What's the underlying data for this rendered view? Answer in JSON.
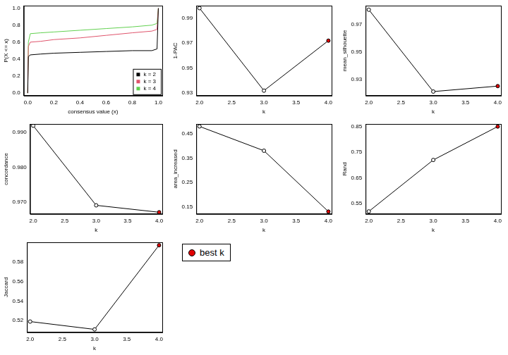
{
  "chart_data": [
    {
      "type": "line",
      "x_label": "consensus value (x)",
      "y_label": "P(X <= x)",
      "legend": "bottomright",
      "grid": false,
      "xlim": [
        -0.03,
        1.03
      ],
      "ylim": [
        -0.03,
        1.03
      ],
      "xticks": [
        {
          "value": 0,
          "label": "0.0"
        },
        0.2,
        0.4,
        0.6,
        0.8,
        {
          "value": 1,
          "label": "1.0"
        }
      ],
      "yticks": [
        {
          "value": 0,
          "label": "0.0"
        },
        0.2,
        0.4,
        0.6,
        0.8,
        {
          "value": 1,
          "label": "1.0"
        }
      ],
      "series": [
        {
          "name": "k = 2",
          "color": "#000000",
          "x": [
            0,
            0.005,
            0.02,
            0.1,
            0.2,
            0.4,
            0.6,
            0.8,
            0.95,
            0.99,
            1.0
          ],
          "values": [
            0,
            0.43,
            0.45,
            0.46,
            0.47,
            0.48,
            0.49,
            0.5,
            0.5,
            0.52,
            1.0
          ]
        },
        {
          "name": "k = 3",
          "color": "#df536b",
          "x": [
            0,
            0.005,
            0.02,
            0.1,
            0.2,
            0.4,
            0.6,
            0.8,
            0.95,
            0.99,
            1.0
          ],
          "values": [
            0,
            0.55,
            0.6,
            0.61,
            0.63,
            0.65,
            0.68,
            0.71,
            0.73,
            0.75,
            1.0
          ]
        },
        {
          "name": "k = 4",
          "color": "#61d04f",
          "x": [
            0,
            0.005,
            0.02,
            0.1,
            0.2,
            0.4,
            0.6,
            0.8,
            0.95,
            0.99,
            1.0
          ],
          "values": [
            0,
            0.6,
            0.7,
            0.71,
            0.72,
            0.74,
            0.76,
            0.78,
            0.8,
            0.82,
            1.0
          ]
        }
      ]
    },
    {
      "type": "line",
      "x_label": "k",
      "y_label": "1-PAC",
      "grid": false,
      "x": [
        2,
        3,
        4
      ],
      "xlim": [
        1.95,
        4.05
      ],
      "ylim": [
        0.928,
        1.0
      ],
      "xticks": [
        {
          "value": 2,
          "label": "2.0"
        },
        2.5,
        {
          "value": 3,
          "label": "3.0"
        },
        3.5,
        {
          "value": 4,
          "label": "4.0"
        }
      ],
      "yticks": [
        0.93,
        0.95,
        0.97,
        0.99
      ],
      "series": [
        {
          "color": "#000000",
          "marker": "circle",
          "colors": [
            "#ffffff",
            "#ffffff",
            "#e00000"
          ],
          "values": [
            0.998,
            0.932,
            0.972
          ]
        }
      ]
    },
    {
      "type": "line",
      "x_label": "k",
      "y_label": "mean_silhouette",
      "grid": false,
      "x": [
        2,
        3,
        4
      ],
      "xlim": [
        1.95,
        4.05
      ],
      "ylim": [
        0.918,
        0.984
      ],
      "xticks": [
        {
          "value": 2,
          "label": "2.0"
        },
        2.5,
        {
          "value": 3,
          "label": "3.0"
        },
        3.5,
        {
          "value": 4,
          "label": "4.0"
        }
      ],
      "yticks": [
        0.93,
        0.95,
        0.97
      ],
      "series": [
        {
          "color": "#000000",
          "marker": "circle",
          "colors": [
            "#ffffff",
            "#ffffff",
            "#e00000"
          ],
          "values": [
            0.981,
            0.921,
            0.925
          ]
        }
      ]
    },
    {
      "type": "line",
      "x_label": "k",
      "y_label": "concordance",
      "grid": false,
      "x": [
        2,
        3,
        4
      ],
      "xlim": [
        1.95,
        4.05
      ],
      "ylim": [
        0.9665,
        0.9925
      ],
      "xticks": [
        {
          "value": 2,
          "label": "2.0"
        },
        2.5,
        {
          "value": 3,
          "label": "3.0"
        },
        3.5,
        {
          "value": 4,
          "label": "4.0"
        }
      ],
      "yticks": [
        {
          "value": 0.97,
          "label": "0.970"
        },
        {
          "value": 0.98,
          "label": "0.980"
        },
        {
          "value": 0.99,
          "label": "0.990"
        }
      ],
      "series": [
        {
          "color": "#000000",
          "marker": "circle",
          "colors": [
            "#ffffff",
            "#ffffff",
            "#e00000"
          ],
          "values": [
            0.992,
            0.969,
            0.967
          ]
        }
      ]
    },
    {
      "type": "line",
      "x_label": "k",
      "y_label": "area_increased",
      "grid": false,
      "x": [
        2,
        3,
        4
      ],
      "xlim": [
        1.95,
        4.05
      ],
      "ylim": [
        0.12,
        0.49
      ],
      "xticks": [
        {
          "value": 2,
          "label": "2.0"
        },
        2.5,
        {
          "value": 3,
          "label": "3.0"
        },
        3.5,
        {
          "value": 4,
          "label": "4.0"
        }
      ],
      "yticks": [
        0.15,
        0.25,
        0.35,
        0.45
      ],
      "series": [
        {
          "color": "#000000",
          "marker": "circle",
          "colors": [
            "#ffffff",
            "#ffffff",
            "#e00000"
          ],
          "values": [
            0.48,
            0.38,
            0.13
          ]
        }
      ]
    },
    {
      "type": "line",
      "x_label": "k",
      "y_label": "Rand",
      "grid": false,
      "x": [
        2,
        3,
        4
      ],
      "xlim": [
        1.95,
        4.05
      ],
      "ylim": [
        0.51,
        0.86
      ],
      "xticks": [
        {
          "value": 2,
          "label": "2.0"
        },
        2.5,
        {
          "value": 3,
          "label": "3.0"
        },
        3.5,
        {
          "value": 4,
          "label": "4.0"
        }
      ],
      "yticks": [
        0.55,
        0.65,
        0.75,
        0.85
      ],
      "series": [
        {
          "color": "#000000",
          "marker": "circle",
          "colors": [
            "#ffffff",
            "#ffffff",
            "#e00000"
          ],
          "values": [
            0.52,
            0.72,
            0.85
          ]
        }
      ]
    },
    {
      "type": "line",
      "x_label": "k",
      "y_label": "Jaccard",
      "grid": false,
      "x": [
        2,
        3,
        4
      ],
      "xlim": [
        1.95,
        4.05
      ],
      "ylim": [
        0.508,
        0.6
      ],
      "xticks": [
        {
          "value": 2,
          "label": "2.0"
        },
        2.5,
        {
          "value": 3,
          "label": "3.0"
        },
        3.5,
        {
          "value": 4,
          "label": "4.0"
        }
      ],
      "yticks": [
        0.52,
        0.54,
        0.56,
        0.58
      ],
      "series": [
        {
          "color": "#000000",
          "marker": "circle",
          "colors": [
            "#ffffff",
            "#ffffff",
            "#e00000"
          ],
          "values": [
            0.519,
            0.511,
            0.597
          ]
        }
      ]
    },
    {
      "type": "legend",
      "series": [
        {
          "name": "best k",
          "color": "#e00000",
          "marker": "circle"
        }
      ]
    }
  ]
}
